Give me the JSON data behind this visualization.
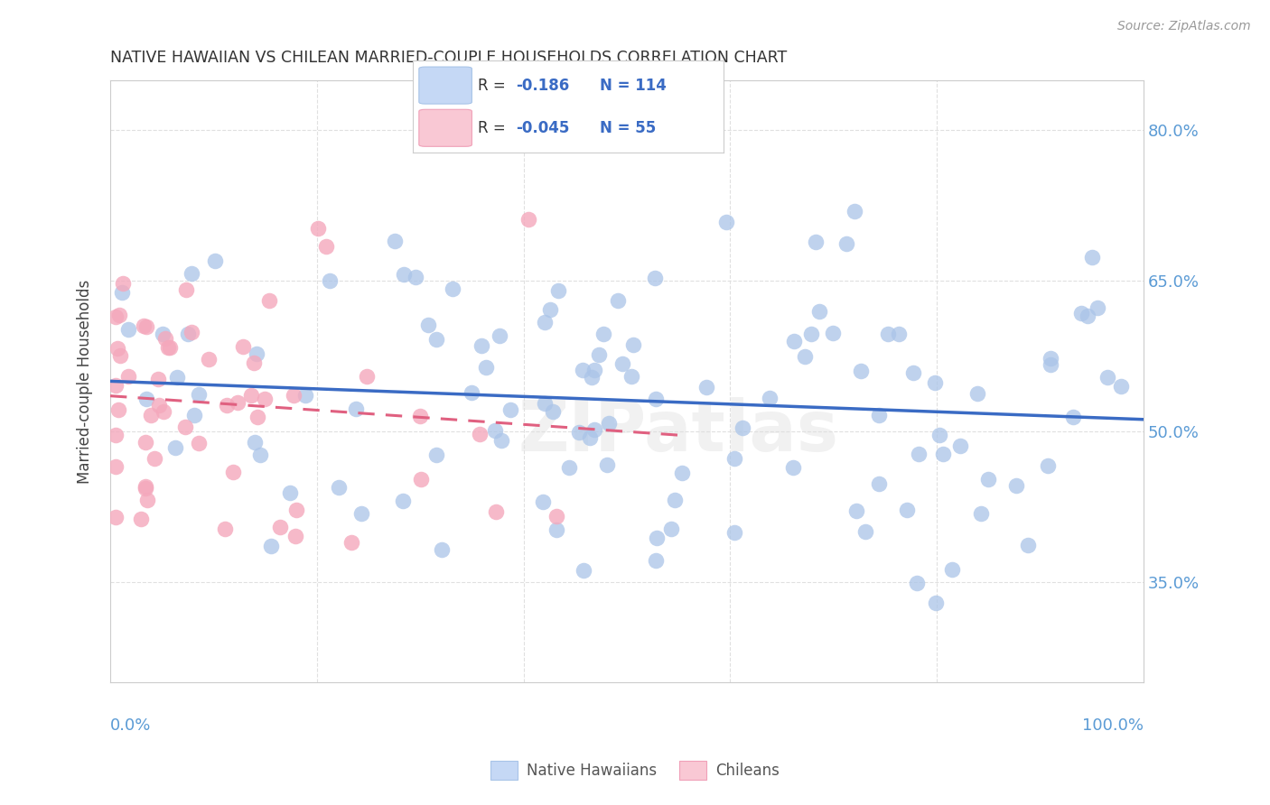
{
  "title": "NATIVE HAWAIIAN VS CHILEAN MARRIED-COUPLE HOUSEHOLDS CORRELATION CHART",
  "source": "Source: ZipAtlas.com",
  "ylabel": "Married-couple Households",
  "xlim": [
    0,
    100
  ],
  "ylim": [
    25,
    85
  ],
  "native_hawaiian_R": "-0.186",
  "native_hawaiian_N": "114",
  "chilean_R": "-0.045",
  "chilean_N": "55",
  "blue_color": "#aac4e8",
  "pink_color": "#f4a8bc",
  "blue_line_color": "#3a6bc4",
  "pink_line_color": "#e06080",
  "legend_blue_fill": "#c5d8f5",
  "legend_pink_fill": "#f9c8d4",
  "background_color": "#ffffff",
  "grid_color": "#e0e0e0",
  "title_color": "#333333",
  "axis_label_color": "#5b9bd5",
  "watermark_text": "ZIPatlas"
}
